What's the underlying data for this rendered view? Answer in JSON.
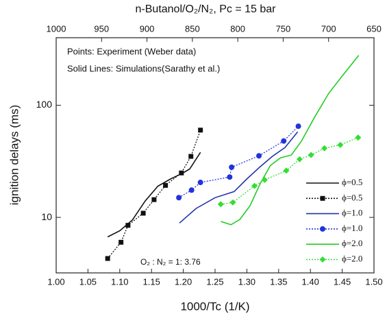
{
  "chart_data": {
    "type": "line",
    "title": "n-Butanol/O₂/N₂, Pc = 15 bar",
    "x_label": "1000/Tc (1/K)",
    "y_label": "ignition delays (ms)",
    "annotations": [
      "Points: Experiment (Weber data)",
      "Solid Lines: Simulations(Sarathy et al.)",
      "O₂ : N₂ = 1: 3.76"
    ],
    "xlim": [
      1.0,
      1.5
    ],
    "xticks": [
      {
        "value": 1.0,
        "label": "1.00"
      },
      {
        "value": 1.05,
        "label": "1.05"
      },
      {
        "value": 1.1,
        "label": "1.10"
      },
      {
        "value": 1.15,
        "label": "1.15"
      },
      {
        "value": 1.2,
        "label": "1.20"
      },
      {
        "value": 1.25,
        "label": "1.25"
      },
      {
        "value": 1.3,
        "label": "1.30"
      },
      {
        "value": 1.35,
        "label": "1.35"
      },
      {
        "value": 1.4,
        "label": "1.40"
      },
      {
        "value": 1.45,
        "label": "1.45"
      },
      {
        "value": 1.5,
        "label": "1.50"
      }
    ],
    "x2lim": [
      1000,
      650
    ],
    "x2ticks": [
      1000,
      950,
      900,
      850,
      800,
      750,
      700,
      650
    ],
    "ylim": [
      3.2,
      400
    ],
    "yticks": [
      10,
      100
    ],
    "y_scale": "log",
    "legend_position": "lower right",
    "series": [
      {
        "name": "ϕ=0.5",
        "color": "#111111",
        "line_style": "solid",
        "marker": null,
        "x": [
          1.081,
          1.1,
          1.12,
          1.14,
          1.16,
          1.18,
          1.2,
          1.21,
          1.227
        ],
        "values": [
          6.7,
          7.6,
          9.5,
          14,
          19,
          22,
          25,
          27,
          38
        ]
      },
      {
        "name": "ϕ=0.5",
        "color": "#111111",
        "line_style": "dotted",
        "marker": "square",
        "x": [
          1.081,
          1.102,
          1.113,
          1.137,
          1.154,
          1.172,
          1.197,
          1.212,
          1.227
        ],
        "values": [
          4.3,
          6.0,
          8.5,
          10.9,
          14.4,
          19.3,
          24.9,
          35,
          60
        ]
      },
      {
        "name": "ϕ=1.0",
        "color": "#2233aa",
        "line_style": "solid",
        "marker": null,
        "x": [
          1.194,
          1.22,
          1.25,
          1.28,
          1.3,
          1.32,
          1.34,
          1.36,
          1.38
        ],
        "values": [
          8.9,
          12,
          15,
          17,
          22,
          28,
          35,
          42,
          58
        ]
      },
      {
        "name": "ϕ=1.0",
        "color": "#2233dd",
        "line_style": "dotted",
        "marker": "circle",
        "x": [
          1.193,
          1.213,
          1.227,
          1.273,
          1.276,
          1.319,
          1.358,
          1.381
        ],
        "values": [
          15.0,
          17.5,
          20.5,
          22.9,
          28,
          35.4,
          48,
          65
        ]
      },
      {
        "name": "ϕ=2.0",
        "color": "#22cc22",
        "line_style": "solid",
        "marker": null,
        "x": [
          1.259,
          1.275,
          1.289,
          1.305,
          1.321,
          1.337,
          1.353,
          1.37,
          1.386,
          1.407,
          1.429,
          1.45,
          1.476
        ],
        "values": [
          9.2,
          8.6,
          9.6,
          12.7,
          20,
          29,
          34,
          36,
          48,
          79,
          128,
          182,
          278
        ]
      },
      {
        "name": "ϕ=2.0",
        "color": "#33dd33",
        "line_style": "dotted",
        "marker": "diamond",
        "x": [
          1.259,
          1.278,
          1.312,
          1.328,
          1.362,
          1.383,
          1.401,
          1.422,
          1.447,
          1.475
        ],
        "values": [
          13.1,
          13.6,
          19.1,
          21.6,
          26.1,
          33,
          36,
          41.3,
          44.3,
          51.5
        ]
      }
    ]
  }
}
